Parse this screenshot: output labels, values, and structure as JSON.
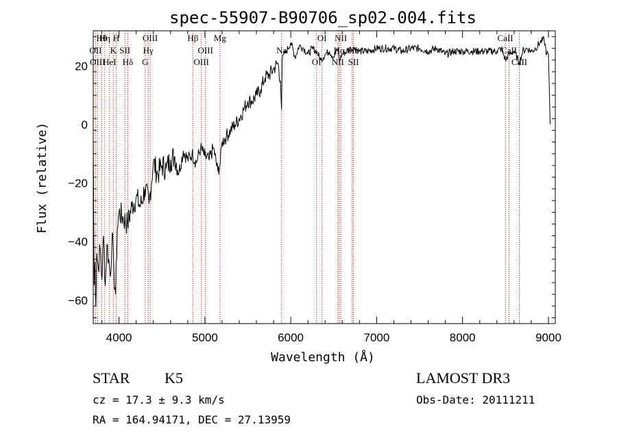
{
  "chart_data": {
    "type": "line",
    "title": "spec-55907-B90706_sp02-004.fits",
    "xlabel": "Wavelength (Å)",
    "ylabel": "Flux (relative)",
    "xlim": [
      3700,
      9080
    ],
    "ylim": [
      -68,
      32
    ],
    "xticks": [
      4000,
      5000,
      6000,
      7000,
      8000,
      9000
    ],
    "yticks": [
      -60,
      -40,
      -20,
      0,
      20
    ],
    "series": [
      {
        "name": "flux",
        "x": [
          3700,
          3710,
          3720,
          3730,
          3740,
          3760,
          3780,
          3800,
          3820,
          3840,
          3860,
          3880,
          3900,
          3920,
          3940,
          3960,
          3980,
          4000,
          4050,
          4100,
          4150,
          4200,
          4250,
          4300,
          4350,
          4400,
          4450,
          4500,
          4550,
          4600,
          4650,
          4700,
          4750,
          4800,
          4850,
          4900,
          4950,
          5000,
          5050,
          5100,
          5150,
          5180,
          5200,
          5250,
          5300,
          5350,
          5400,
          5450,
          5500,
          5550,
          5600,
          5650,
          5700,
          5750,
          5800,
          5850,
          5880,
          5893,
          5900,
          5920,
          5950,
          6000,
          6050,
          6100,
          6150,
          6200,
          6250,
          6300,
          6350,
          6400,
          6450,
          6500,
          6550,
          6563,
          6600,
          6650,
          6700,
          6750,
          6800,
          6900,
          7000,
          7100,
          7200,
          7300,
          7400,
          7500,
          7600,
          7700,
          7800,
          7900,
          8000,
          8100,
          8200,
          8300,
          8400,
          8450,
          8500,
          8542,
          8600,
          8662,
          8700,
          8750,
          8800,
          8850,
          8900,
          8950,
          8980,
          9000,
          9020
        ],
        "values": [
          -5,
          -55,
          -47,
          -62,
          -44,
          -49,
          -42,
          -53,
          -38,
          -55,
          -41,
          -46,
          -52,
          -37,
          -50,
          -58,
          -36,
          -30,
          -32,
          -34,
          -28,
          -25,
          -28,
          -22,
          -27,
          -13,
          -17,
          -14,
          -15,
          -12,
          -11,
          -16,
          -9,
          -12,
          -10,
          -13,
          -8,
          -11,
          -12,
          -8,
          -16,
          -13,
          -6,
          -4,
          -2,
          0,
          2,
          5,
          8,
          8,
          10,
          12,
          16,
          17,
          19,
          21,
          15,
          5,
          22,
          24,
          25,
          28,
          23,
          27,
          26,
          24,
          26,
          25,
          22,
          24,
          25,
          23,
          26,
          22,
          24,
          25,
          26,
          26,
          25,
          25,
          26,
          26,
          26,
          25,
          26,
          26,
          25,
          26,
          24,
          25,
          25,
          25,
          25,
          25,
          25,
          26,
          22,
          24,
          25,
          21,
          25,
          26,
          25,
          26,
          28,
          29,
          24,
          24,
          0
        ]
      }
    ],
    "line_labels": [
      {
        "name": "Hθ",
        "wavelength": 3798
      },
      {
        "name": "OII",
        "wavelength": 3727
      },
      {
        "name": "OIII",
        "wavelength": 3750
      },
      {
        "name": "Hη",
        "wavelength": 3835
      },
      {
        "name": "K",
        "wavelength": 3934
      },
      {
        "name": "HeI",
        "wavelength": 3889
      },
      {
        "name": "H",
        "wavelength": 3968
      },
      {
        "name": "SII",
        "wavelength": 4069
      },
      {
        "name": "Hδ",
        "wavelength": 4102
      },
      {
        "name": "OIII",
        "wavelength": 4363
      },
      {
        "name": "Hγ",
        "wavelength": 4340
      },
      {
        "name": "G",
        "wavelength": 4305
      },
      {
        "name": "Hβ",
        "wavelength": 4861
      },
      {
        "name": "OIII",
        "wavelength": 5007
      },
      {
        "name": "OIII",
        "wavelength": 4959
      },
      {
        "name": "Mg",
        "wavelength": 5175
      },
      {
        "name": "Na",
        "wavelength": 5893
      },
      {
        "name": "OI",
        "wavelength": 6300
      },
      {
        "name": "OI",
        "wavelength": 6364
      },
      {
        "name": "Hα",
        "wavelength": 6563
      },
      {
        "name": "NII",
        "wavelength": 6548
      },
      {
        "name": "NII",
        "wavelength": 6583
      },
      {
        "name": "SII",
        "wavelength": 6716
      },
      {
        "name": "SII",
        "wavelength": 6731
      },
      {
        "name": "CaII",
        "wavelength": 8498
      },
      {
        "name": "CaII",
        "wavelength": 8542
      },
      {
        "name": "CaII",
        "wavelength": 8662
      }
    ],
    "marker_lines": [
      3727,
      3750,
      3798,
      3835,
      3889,
      3934,
      3968,
      4069,
      4102,
      4305,
      4340,
      4363,
      4861,
      4959,
      5007,
      5175,
      5893,
      6300,
      6364,
      6548,
      6563,
      6583,
      6716,
      6731,
      8498,
      8542,
      8662
    ],
    "grid": false,
    "marker_line_color": "#cc0000"
  },
  "info": {
    "object_type": "STAR",
    "subclass": "K5",
    "survey": "LAMOST DR3",
    "cz": "cz = 17.3 ± 9.3 km/s",
    "obs_date": "Obs-Date: 20111211",
    "coords": "RA = 164.94171, DEC =  27.13959"
  }
}
